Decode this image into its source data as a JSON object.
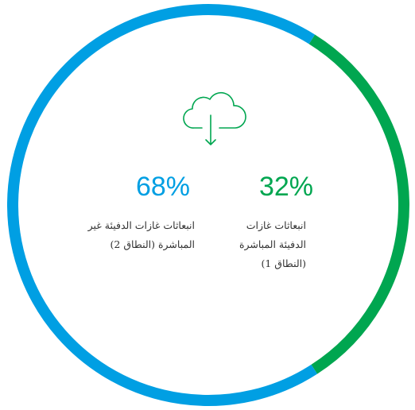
{
  "chart_data": {
    "type": "pie",
    "donut": true,
    "categories": [
      "انبعاثات غازات الدفيئة المباشرة (النطاق 1)",
      "انبعاثات غازات الدفيئة غير المباشرة (النطاق 2)"
    ],
    "values": [
      32,
      68
    ],
    "value_labels": [
      "32%",
      "68%"
    ],
    "colors": [
      "#00a650",
      "#009fe3"
    ]
  }
}
